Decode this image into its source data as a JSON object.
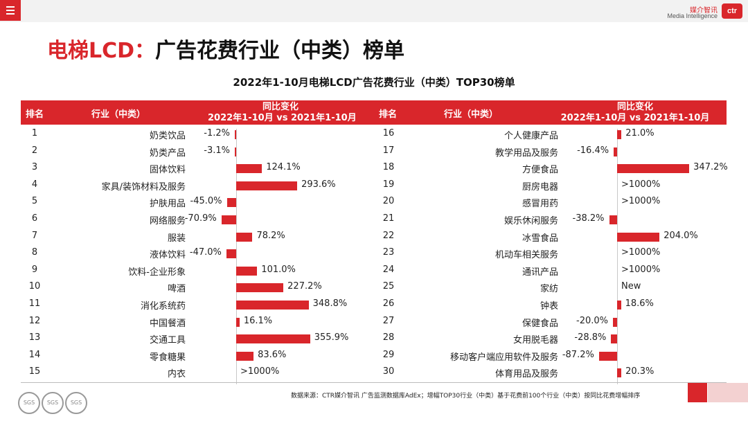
{
  "header": {
    "menu_icon": "hamburger-menu-icon",
    "logo_cn": "媒介智讯",
    "logo_en": "Media Intelligence",
    "logo_mark": "ctr"
  },
  "page_title": {
    "highlight": "电梯LCD：",
    "rest": "广告花费行业（中类）榜单"
  },
  "chart_data": {
    "type": "bar",
    "title": "2022年1-10月电梯LCD广告花费行业（中类）TOP30榜单",
    "columns": {
      "rank": "排名",
      "industry": "行业（中类）",
      "yoy_line1": "同比变化",
      "yoy_line2": "2022年1-10月 vs 2021年1-10月"
    },
    "unit": "%",
    "left": [
      {
        "rank": "1",
        "name": "奶类饮品",
        "value": -1.2,
        "label": "-1.2%"
      },
      {
        "rank": "2",
        "name": "奶类产品",
        "value": -3.1,
        "label": "-3.1%"
      },
      {
        "rank": "3",
        "name": "固体饮料",
        "value": 124.1,
        "label": "124.1%"
      },
      {
        "rank": "4",
        "name": "家具/装饰材料及服务",
        "value": 293.6,
        "label": "293.6%"
      },
      {
        "rank": "5",
        "name": "护肤用品",
        "value": -45.0,
        "label": "-45.0%"
      },
      {
        "rank": "6",
        "name": "网络服务",
        "value": -70.9,
        "label": "-70.9%"
      },
      {
        "rank": "7",
        "name": "服装",
        "value": 78.2,
        "label": "78.2%"
      },
      {
        "rank": "8",
        "name": "液体饮料",
        "value": -47.0,
        "label": "-47.0%"
      },
      {
        "rank": "9",
        "name": "饮料-企业形象",
        "value": 101.0,
        "label": "101.0%"
      },
      {
        "rank": "10",
        "name": "啤酒",
        "value": 227.2,
        "label": "227.2%"
      },
      {
        "rank": "11",
        "name": "消化系统药",
        "value": 348.8,
        "label": "348.8%"
      },
      {
        "rank": "12",
        "name": "中国餐酒",
        "value": 16.1,
        "label": "16.1%"
      },
      {
        "rank": "13",
        "name": "交通工具",
        "value": 355.9,
        "label": "355.9%"
      },
      {
        "rank": "14",
        "name": "零食糖果",
        "value": 83.6,
        "label": "83.6%"
      },
      {
        "rank": "15",
        "name": "内衣",
        "value": null,
        "label": ">1000%"
      }
    ],
    "right": [
      {
        "rank": "16",
        "name": "个人健康产品",
        "value": 21.0,
        "label": "21.0%"
      },
      {
        "rank": "17",
        "name": "教学用品及服务",
        "value": -16.4,
        "label": "-16.4%"
      },
      {
        "rank": "18",
        "name": "方便食品",
        "value": 347.2,
        "label": "347.2%"
      },
      {
        "rank": "19",
        "name": "厨房电器",
        "value": null,
        "label": ">1000%"
      },
      {
        "rank": "20",
        "name": "感冒用药",
        "value": null,
        "label": ">1000%"
      },
      {
        "rank": "21",
        "name": "娱乐休闲服务",
        "value": -38.2,
        "label": "-38.2%"
      },
      {
        "rank": "22",
        "name": "冰雪食品",
        "value": 204.0,
        "label": "204.0%"
      },
      {
        "rank": "23",
        "name": "机动车相关服务",
        "value": null,
        "label": ">1000%"
      },
      {
        "rank": "24",
        "name": "通讯产品",
        "value": null,
        "label": ">1000%"
      },
      {
        "rank": "25",
        "name": "家纺",
        "value": null,
        "label": "New"
      },
      {
        "rank": "26",
        "name": "钟表",
        "value": 18.6,
        "label": "18.6%"
      },
      {
        "rank": "27",
        "name": "保健食品",
        "value": -20.0,
        "label": "-20.0%"
      },
      {
        "rank": "28",
        "name": "女用脱毛器",
        "value": -28.8,
        "label": "-28.8%"
      },
      {
        "rank": "29",
        "name": "移动客户端应用软件及服务",
        "value": -87.2,
        "label": "-87.2%"
      },
      {
        "rank": "30",
        "name": "体育用品及服务",
        "value": 20.3,
        "label": "20.3%"
      }
    ]
  },
  "footer": {
    "source": "数据来源：CTR媒介智讯 广告监测数据库AdEx；增幅TOP30行业（中类）基于花费前100个行业（中类）按同比花费增幅排序",
    "badges": [
      "SGS",
      "SGS",
      "SGS"
    ]
  }
}
